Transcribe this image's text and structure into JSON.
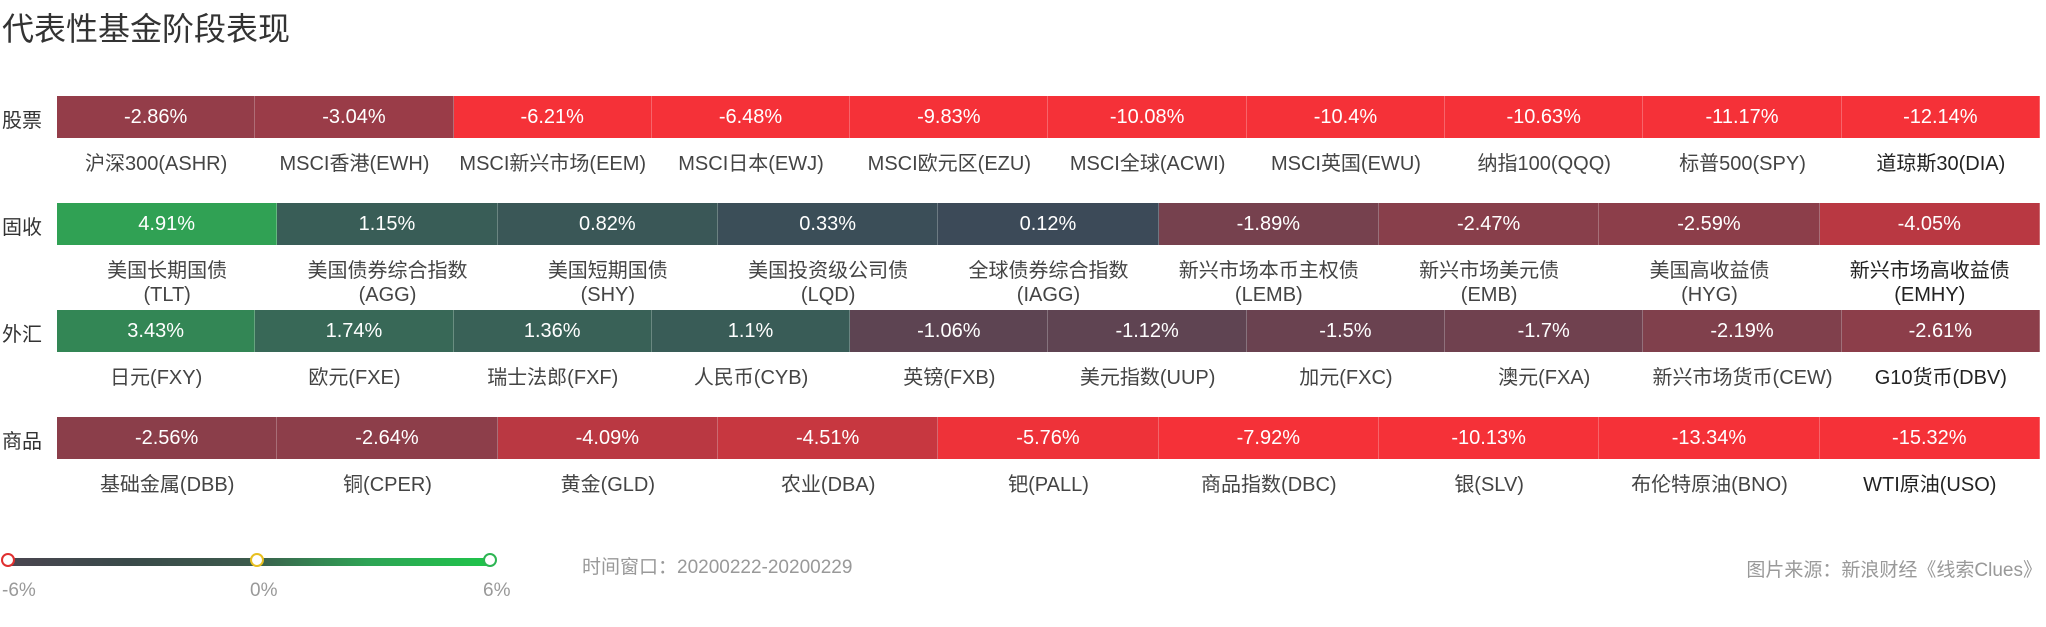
{
  "chart_data": {
    "type": "heatmap",
    "title": "代表性基金阶段表现",
    "color_scale": {
      "min": -6,
      "mid": 0,
      "max": 6,
      "min_label": "-6%",
      "mid_label": "0%",
      "max_label": "6%",
      "min_color": "#f53138",
      "mid_color": "#3c4858",
      "max_color": "#2db553"
    },
    "rows": [
      {
        "label": "股票",
        "cells": [
          {
            "name": "沪深300(ASHR)",
            "value": -2.86,
            "text": "-2.86%"
          },
          {
            "name": "MSCI香港(EWH)",
            "value": -3.04,
            "text": "-3.04%"
          },
          {
            "name": "MSCI新兴市场(EEM)",
            "value": -6.21,
            "text": "-6.21%"
          },
          {
            "name": "MSCI日本(EWJ)",
            "value": -6.48,
            "text": "-6.48%"
          },
          {
            "name": "MSCI欧元区(EZU)",
            "value": -9.83,
            "text": "-9.83%"
          },
          {
            "name": "MSCI全球(ACWI)",
            "value": -10.08,
            "text": "-10.08%"
          },
          {
            "name": "MSCI英国(EWU)",
            "value": -10.4,
            "text": "-10.4%"
          },
          {
            "name": "纳指100(QQQ)",
            "value": -10.63,
            "text": "-10.63%"
          },
          {
            "name": "标普500(SPY)",
            "value": -11.17,
            "text": "-11.17%"
          },
          {
            "name": "道琼斯30(DIA)",
            "value": -12.14,
            "text": "-12.14%"
          }
        ]
      },
      {
        "label": "固收",
        "cells": [
          {
            "name": "美国长期国债\n(TLT)",
            "value": 4.91,
            "text": "4.91%"
          },
          {
            "name": "美国债券综合指数\n(AGG)",
            "value": 1.15,
            "text": "1.15%"
          },
          {
            "name": "美国短期国债\n(SHY)",
            "value": 0.82,
            "text": "0.82%"
          },
          {
            "name": "美国投资级公司债\n(LQD)",
            "value": 0.33,
            "text": "0.33%"
          },
          {
            "name": "全球债券综合指数\n(IAGG)",
            "value": 0.12,
            "text": "0.12%"
          },
          {
            "name": "新兴市场本币主权债\n(LEMB)",
            "value": -1.89,
            "text": "-1.89%"
          },
          {
            "name": "新兴市场美元债\n(EMB)",
            "value": -2.47,
            "text": "-2.47%"
          },
          {
            "name": "美国高收益债\n(HYG)",
            "value": -2.59,
            "text": "-2.59%"
          },
          {
            "name": "新兴市场高收益债\n(EMHY)",
            "value": -4.05,
            "text": "-4.05%"
          }
        ]
      },
      {
        "label": "外汇",
        "cells": [
          {
            "name": "日元(FXY)",
            "value": 3.43,
            "text": "3.43%"
          },
          {
            "name": "欧元(FXE)",
            "value": 1.74,
            "text": "1.74%"
          },
          {
            "name": "瑞士法郎(FXF)",
            "value": 1.36,
            "text": "1.36%"
          },
          {
            "name": "人民币(CYB)",
            "value": 1.1,
            "text": "1.1%"
          },
          {
            "name": "英镑(FXB)",
            "value": -1.06,
            "text": "-1.06%"
          },
          {
            "name": "美元指数(UUP)",
            "value": -1.12,
            "text": "-1.12%"
          },
          {
            "name": "加元(FXC)",
            "value": -1.5,
            "text": "-1.5%"
          },
          {
            "name": "澳元(FXA)",
            "value": -1.7,
            "text": "-1.7%"
          },
          {
            "name": "新兴市场货币(CEW)",
            "value": -2.19,
            "text": "-2.19%"
          },
          {
            "name": "G10货币(DBV)",
            "value": -2.61,
            "text": "-2.61%"
          }
        ]
      },
      {
        "label": "商品",
        "cells": [
          {
            "name": "基础金属(DBB)",
            "value": -2.56,
            "text": "-2.56%"
          },
          {
            "name": "铜(CPER)",
            "value": -2.64,
            "text": "-2.64%"
          },
          {
            "name": "黄金(GLD)",
            "value": -4.09,
            "text": "-4.09%"
          },
          {
            "name": "农业(DBA)",
            "value": -4.51,
            "text": "-4.51%"
          },
          {
            "name": "钯(PALL)",
            "value": -5.76,
            "text": "-5.76%"
          },
          {
            "name": "商品指数(DBC)",
            "value": -7.92,
            "text": "-7.92%"
          },
          {
            "name": "银(SLV)",
            "value": -10.13,
            "text": "-10.13%"
          },
          {
            "name": "布伦特原油(BNO)",
            "value": -13.34,
            "text": "-13.34%"
          },
          {
            "name": "WTI原油(USO)",
            "value": -15.32,
            "text": "-15.32%"
          }
        ]
      }
    ]
  },
  "footer": {
    "time_window": "时间窗口：20200222-20200229",
    "source": "图片来源：新浪财经《线索Clues》"
  }
}
